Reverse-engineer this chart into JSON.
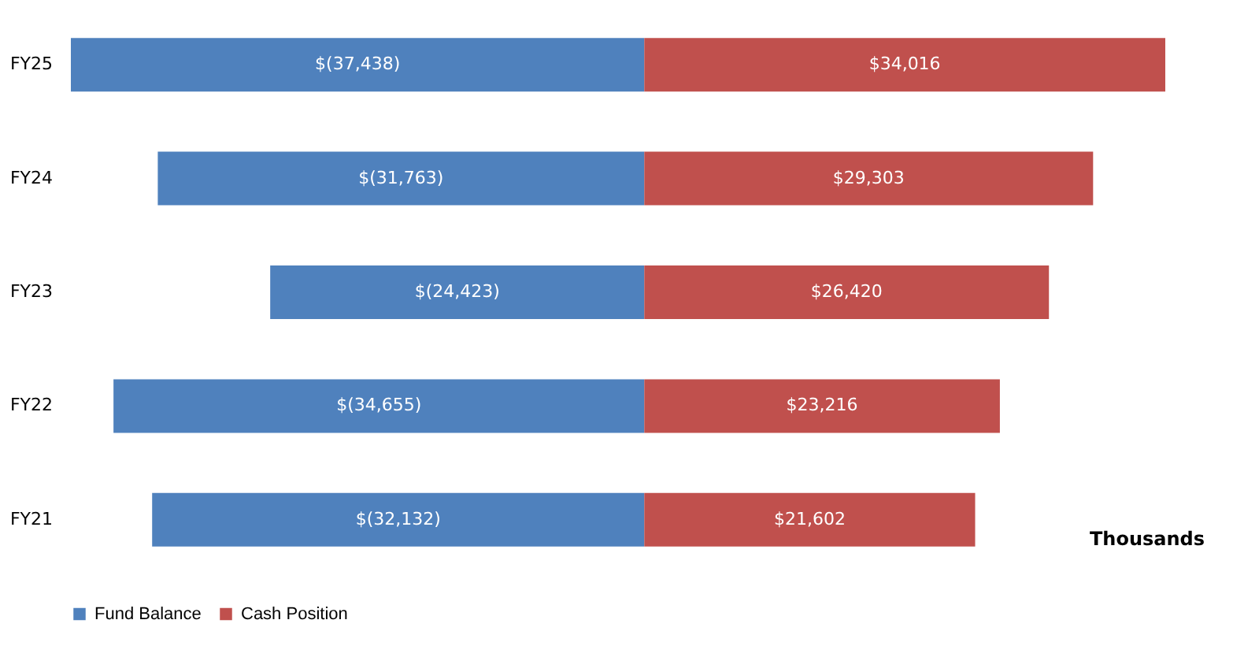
{
  "chart_data": {
    "type": "bar",
    "orientation": "horizontal",
    "stacked": true,
    "categories": [
      "FY25",
      "FY24",
      "FY23",
      "FY22",
      "FY21"
    ],
    "series": [
      {
        "name": "Fund Balance",
        "color": "#4f81bd",
        "values": [
          -37438,
          -31763,
          -24423,
          -34655,
          -32132
        ],
        "value_labels": [
          "$(37,438)",
          "$(31,763)",
          "$(24,423)",
          "$(34,655)",
          "$(32,132)"
        ]
      },
      {
        "name": "Cash Position",
        "color": "#c0504d",
        "values": [
          34016,
          29303,
          26420,
          23216,
          21602
        ],
        "value_labels": [
          "$34,016",
          "$29,303",
          "$26,420",
          "$23,216",
          "$21,602"
        ]
      }
    ],
    "annotations": [
      "Thousands"
    ],
    "legend": "bottom",
    "grid": false
  }
}
